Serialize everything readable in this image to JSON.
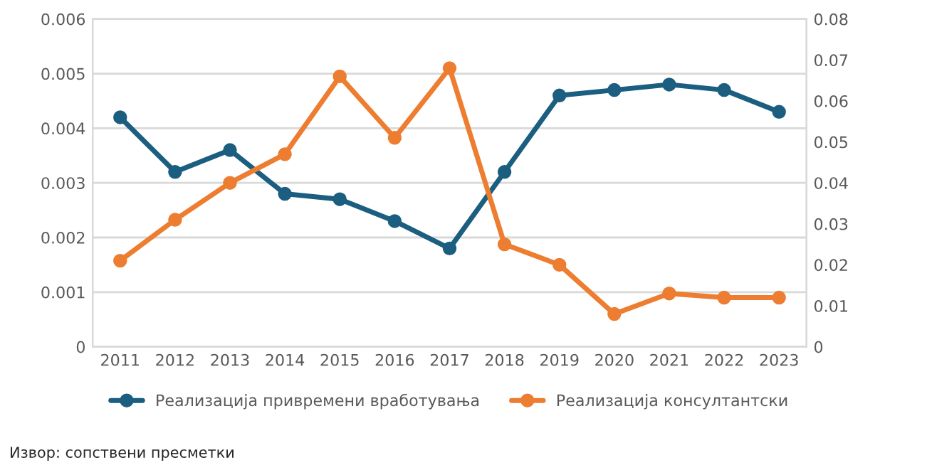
{
  "chart_data": {
    "type": "line",
    "categories": [
      "2011",
      "2012",
      "2013",
      "2014",
      "2015",
      "2016",
      "2017",
      "2018",
      "2019",
      "2020",
      "2021",
      "2022",
      "2023"
    ],
    "series": [
      {
        "name": "Реализација привремени вработувања",
        "color": "#1b5e80",
        "values": [
          0.0042,
          0.0032,
          0.0036,
          0.0028,
          0.0027,
          0.0023,
          0.0018,
          0.0032,
          0.0046,
          0.0047,
          0.0048,
          0.0047,
          0.0043
        ]
      },
      {
        "name": "Реализација консултантски",
        "color": "#ed7d31",
        "axis": "y2",
        "values": [
          0.021,
          0.031,
          0.04,
          0.047,
          0.066,
          0.051,
          0.068,
          0.025,
          0.02,
          0.008,
          0.013,
          0.012,
          0.012
        ]
      }
    ],
    "ylim": [
      0,
      0.006
    ],
    "yticks": [
      0,
      0.001,
      0.002,
      0.003,
      0.004,
      0.005,
      0.006
    ],
    "y2lim": [
      0,
      0.08
    ],
    "y2ticks": [
      0,
      0.01,
      0.02,
      0.03,
      0.04,
      0.05,
      0.06,
      0.07,
      0.08
    ],
    "grid": "y",
    "legend": "bottom",
    "marker": "circle",
    "line_style": "solid",
    "annotations": [
      "Извор: сопствени пресметки"
    ]
  }
}
